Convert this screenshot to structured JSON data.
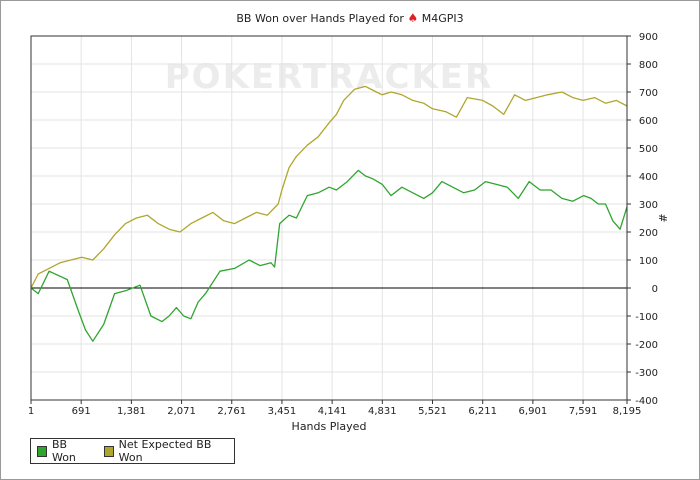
{
  "title_text": "BB Won over Hands Played for",
  "title_suit": "♠",
  "title_player": "M4GPI3",
  "watermark": "POKERTRACKER",
  "legend_placement": "bottom-left",
  "chart_data": {
    "type": "line",
    "title": "BB Won over Hands Played for ♠ M4GPI3",
    "xlabel": "Hands Played",
    "ylabel": "#",
    "xlim": [
      1,
      8195
    ],
    "ylim": [
      -400,
      900
    ],
    "grid": true,
    "x_ticks": [
      "1",
      "691",
      "1,381",
      "2,071",
      "2,761",
      "3,451",
      "4,141",
      "4,831",
      "5,521",
      "6,211",
      "6,901",
      "7,591",
      "8,195"
    ],
    "y_ticks": [
      "900",
      "800",
      "700",
      "600",
      "500",
      "400",
      "300",
      "200",
      "100",
      "0",
      "-100",
      "-200",
      "-300",
      "-400"
    ],
    "series": [
      {
        "name": "BB Won",
        "color": "#2fa52f",
        "x": [
          1,
          100,
          250,
          500,
          650,
          750,
          850,
          1000,
          1150,
          1300,
          1500,
          1650,
          1800,
          1900,
          2000,
          2100,
          2200,
          2300,
          2400,
          2600,
          2800,
          3000,
          3150,
          3300,
          3350,
          3420,
          3550,
          3650,
          3800,
          3950,
          4100,
          4200,
          4350,
          4500,
          4600,
          4700,
          4831,
          4950,
          5100,
          5250,
          5400,
          5521,
          5650,
          5800,
          5950,
          6100,
          6250,
          6400,
          6550,
          6700,
          6850,
          7000,
          7150,
          7300,
          7450,
          7600,
          7700,
          7800,
          7900,
          8000,
          8100,
          8195
        ],
        "y": [
          0,
          -20,
          60,
          30,
          -80,
          -150,
          -190,
          -130,
          -20,
          -10,
          10,
          -100,
          -120,
          -100,
          -70,
          -100,
          -110,
          -50,
          -20,
          60,
          70,
          100,
          80,
          90,
          75,
          230,
          260,
          250,
          330,
          340,
          360,
          350,
          380,
          420,
          400,
          390,
          370,
          330,
          360,
          340,
          320,
          340,
          380,
          360,
          340,
          350,
          380,
          370,
          360,
          320,
          380,
          350,
          350,
          320,
          310,
          330,
          320,
          300,
          300,
          240,
          210,
          290
        ]
      },
      {
        "name": "Net Expected BB Won",
        "color": "#b0a62e",
        "x": [
          1,
          100,
          250,
          400,
          550,
          700,
          850,
          1000,
          1150,
          1300,
          1450,
          1600,
          1750,
          1900,
          2050,
          2200,
          2350,
          2500,
          2650,
          2800,
          2950,
          3100,
          3250,
          3400,
          3450,
          3550,
          3650,
          3800,
          3950,
          4100,
          4200,
          4300,
          4450,
          4600,
          4750,
          4831,
          4950,
          5100,
          5250,
          5400,
          5521,
          5700,
          5850,
          6000,
          6211,
          6350,
          6500,
          6650,
          6800,
          6950,
          7100,
          7300,
          7450,
          7591,
          7750,
          7900,
          8050,
          8195
        ],
        "y": [
          0,
          50,
          70,
          90,
          100,
          110,
          100,
          140,
          190,
          230,
          250,
          260,
          230,
          210,
          200,
          230,
          250,
          270,
          240,
          230,
          250,
          270,
          260,
          300,
          350,
          430,
          470,
          510,
          540,
          590,
          620,
          670,
          710,
          720,
          700,
          690,
          700,
          690,
          670,
          660,
          640,
          630,
          610,
          680,
          670,
          650,
          620,
          690,
          670,
          680,
          690,
          700,
          680,
          670,
          680,
          660,
          670,
          650
        ]
      }
    ]
  }
}
